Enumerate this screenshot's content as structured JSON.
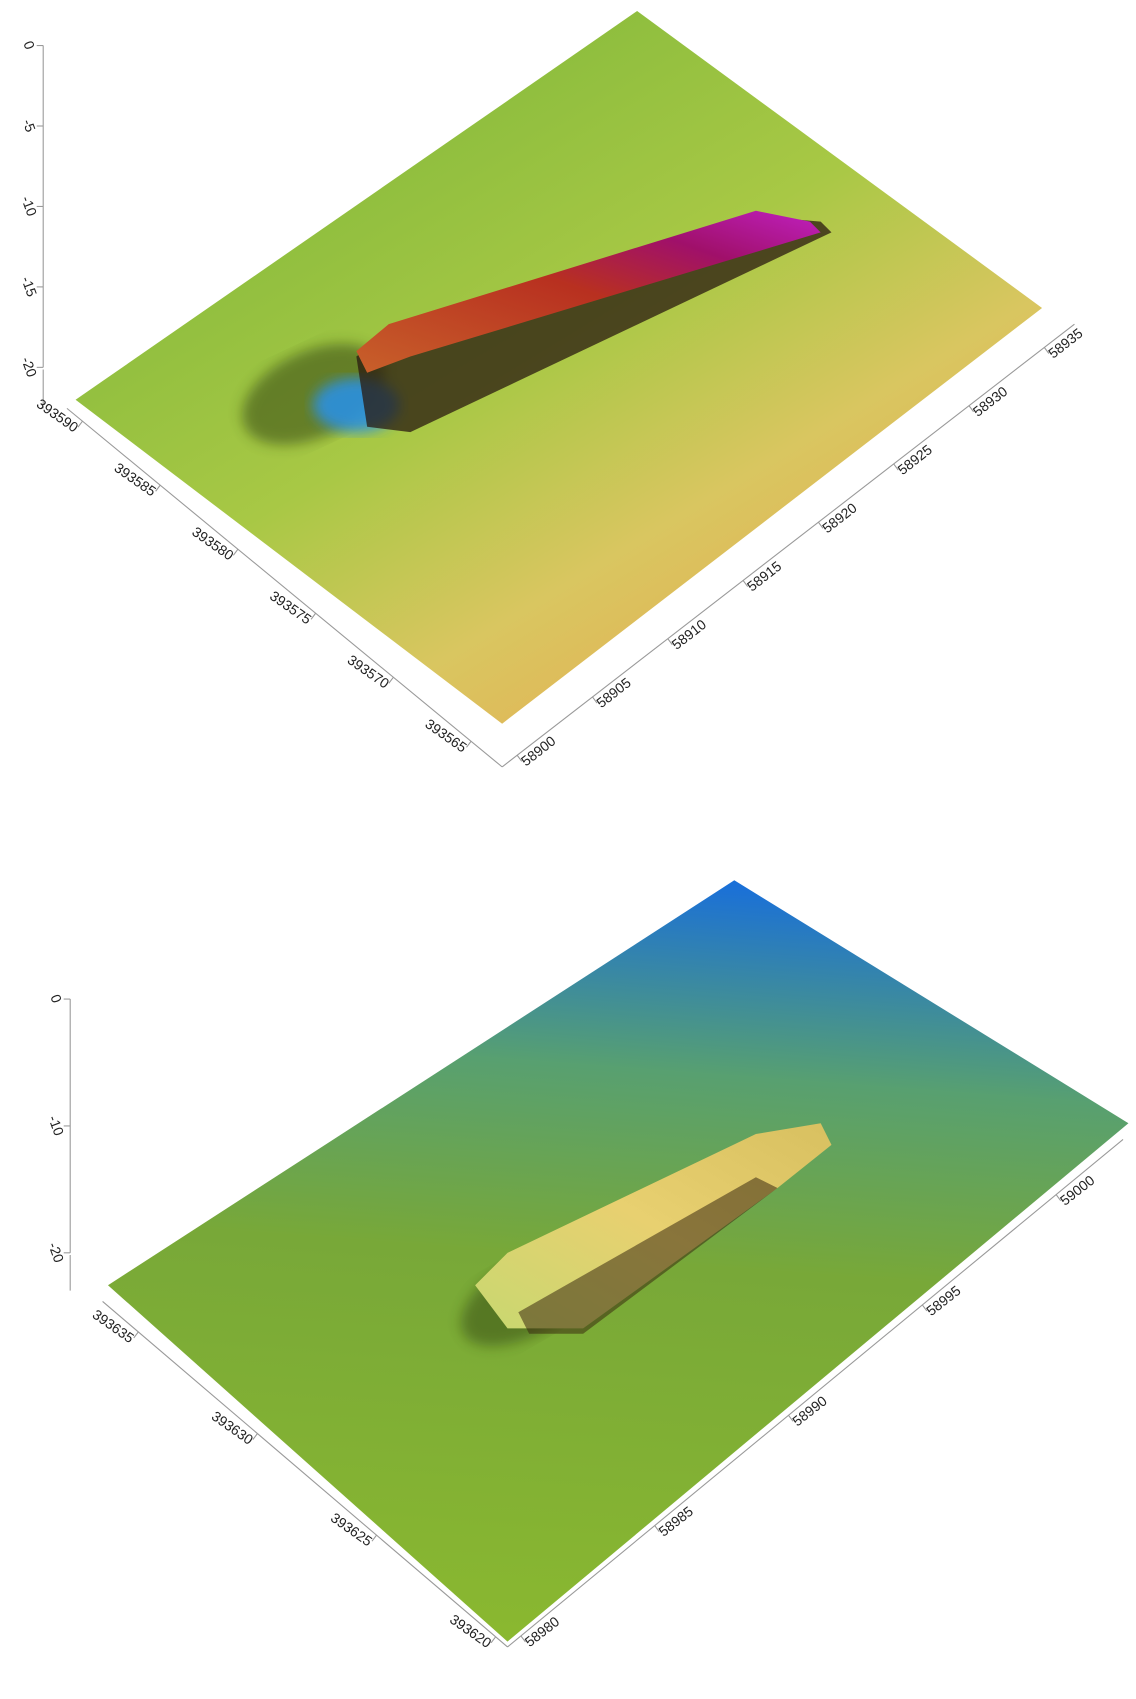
{
  "chart_data": [
    {
      "type": "surface",
      "zlim": [
        0,
        -20
      ],
      "zticks": [
        0,
        -5,
        -10,
        -15,
        -20
      ],
      "ylim": [
        393591,
        393563
      ],
      "yticks": [
        393590,
        393585,
        393580,
        393575,
        393570,
        393565
      ],
      "xlim": [
        58899,
        58937
      ],
      "xticks": [
        58900,
        58905,
        58910,
        58915,
        58920,
        58925,
        58930,
        58935
      ]
    },
    {
      "type": "surface",
      "zlim": [
        0,
        -20
      ],
      "zticks": [
        0,
        -10,
        -20
      ],
      "ylim": [
        393636.5,
        393619.5
      ],
      "yticks": [
        393635,
        393630,
        393625,
        393620
      ],
      "xlim": [
        58979.5,
        59002.5
      ],
      "xticks": [
        58980,
        58985,
        58990,
        58995,
        59000
      ]
    }
  ]
}
